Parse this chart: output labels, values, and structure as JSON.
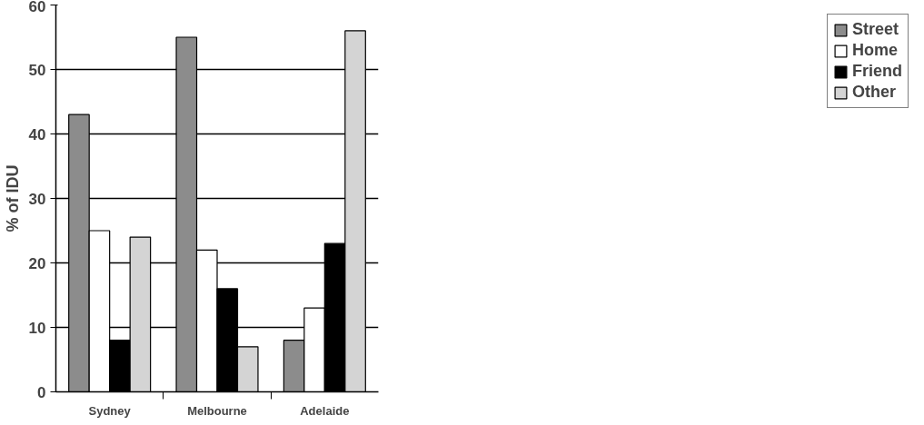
{
  "chart_data": {
    "type": "bar",
    "ylabel": "% of IDU",
    "categories": [
      "Sydney",
      "Melbourne",
      "Adelaide"
    ],
    "series": [
      {
        "name": "Street",
        "color": "#8c8c8c",
        "values": [
          43,
          55,
          8
        ]
      },
      {
        "name": "Home",
        "color": "#ffffff",
        "values": [
          25,
          22,
          13
        ]
      },
      {
        "name": "Friend",
        "color": "#000000",
        "values": [
          8,
          16,
          23
        ]
      },
      {
        "name": "Other",
        "color": "#d4d4d4",
        "values": [
          24,
          7,
          56
        ]
      }
    ],
    "ylim": [
      0,
      60
    ],
    "yticks": [
      0,
      10,
      20,
      30,
      40,
      50,
      60
    ],
    "grid": "y",
    "legend": "right"
  }
}
